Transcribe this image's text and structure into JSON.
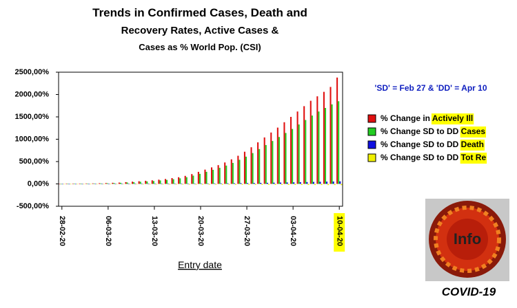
{
  "chart_data": {
    "type": "bar",
    "title": "Trends in Confirmed Cases, Death and",
    "subtitle": "Recovery Rates, Active Cases &",
    "subtitle2": "Cases as % World Pop. (CSI)",
    "annotation": "'SD' = Feb 27 & 'DD' = Apr 10",
    "x_label": "Entry date",
    "image_label": "Info",
    "image_caption": "COVID-19",
    "categories": [
      "28-02-20",
      null,
      null,
      null,
      null,
      null,
      null,
      "06-03-20",
      null,
      null,
      null,
      null,
      null,
      null,
      "13-03-20",
      null,
      null,
      null,
      null,
      null,
      null,
      "20-03-20",
      null,
      null,
      null,
      null,
      null,
      null,
      "27-03-20",
      null,
      null,
      null,
      null,
      null,
      null,
      "03-04-20",
      null,
      null,
      null,
      null,
      null,
      null,
      "10-04-20"
    ],
    "highlight_category": "10-04-20",
    "ylim": [
      -500,
      2500
    ],
    "yticks": [
      {
        "value": -500,
        "label": "-500,00%"
      },
      {
        "value": 0,
        "label": "0,00%"
      },
      {
        "value": 500,
        "label": "500,00%"
      },
      {
        "value": 1000,
        "label": "1000,00%"
      },
      {
        "value": 1500,
        "label": "1500,00%"
      },
      {
        "value": 2000,
        "label": "2000,00%"
      },
      {
        "value": 2500,
        "label": "2500,00%"
      }
    ],
    "series": [
      {
        "name": "% Change in Actively Ill",
        "color": "#e01010",
        "values": [
          0,
          2,
          5,
          8,
          10,
          12,
          15,
          20,
          25,
          30,
          40,
          50,
          60,
          70,
          80,
          95,
          110,
          130,
          150,
          180,
          220,
          270,
          320,
          370,
          420,
          480,
          550,
          630,
          720,
          820,
          930,
          1040,
          1150,
          1260,
          1380,
          1500,
          1620,
          1740,
          1860,
          1960,
          2060,
          2170,
          2380
        ]
      },
      {
        "name": "% Change SD to DD Cases",
        "color": "#22cc22",
        "values": [
          0,
          1,
          3,
          5,
          8,
          10,
          12,
          15,
          20,
          25,
          32,
          40,
          48,
          55,
          65,
          78,
          90,
          105,
          125,
          150,
          185,
          225,
          270,
          315,
          360,
          410,
          470,
          540,
          610,
          690,
          780,
          870,
          960,
          1050,
          1140,
          1230,
          1330,
          1430,
          1530,
          1620,
          1700,
          1780,
          1850
        ]
      },
      {
        "name": "% Change SD to DD Death",
        "color": "#1010e0",
        "values": [
          0,
          0,
          0,
          0,
          0,
          1,
          1,
          1,
          1,
          2,
          2,
          2,
          3,
          3,
          4,
          4,
          5,
          5,
          6,
          7,
          8,
          9,
          10,
          11,
          12,
          14,
          15,
          17,
          19,
          21,
          23,
          25,
          28,
          30,
          33,
          36,
          39,
          42,
          45,
          48,
          51,
          54,
          58
        ]
      },
      {
        "name": "% Change SD to DD Tot Re",
        "color": "#f0f000",
        "values": [
          0,
          -1,
          -2,
          -3,
          -4,
          -5,
          -6,
          -7,
          -8,
          -9,
          -10,
          -11,
          -12,
          -12,
          -13,
          -13,
          -14,
          -14,
          -15,
          -15,
          -16,
          -16,
          -17,
          -17,
          -18,
          -18,
          -19,
          -19,
          -20,
          -20,
          -21,
          -21,
          -22,
          -22,
          -23,
          -23,
          -24,
          -24,
          -25,
          -25,
          -26,
          -26,
          -27
        ]
      }
    ],
    "legend": "right"
  }
}
